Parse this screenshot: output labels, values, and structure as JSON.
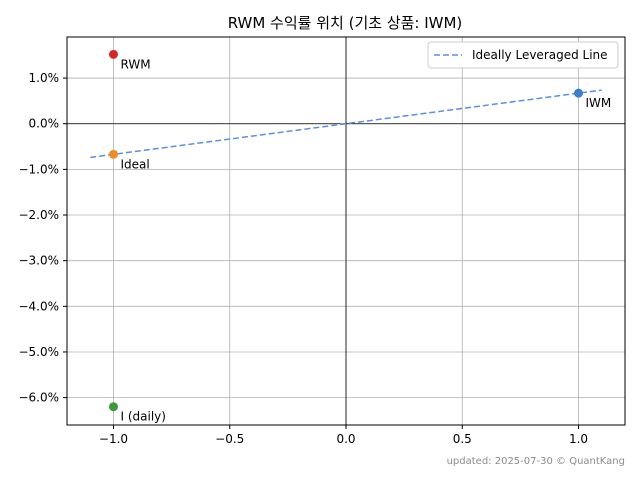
{
  "chart_data": {
    "type": "scatter",
    "title": "RWM 수익률 위치 (기초 상품: IWM)",
    "xlabel": "",
    "ylabel": "",
    "xlim": [
      -1.2,
      1.2
    ],
    "ylim": [
      -6.6,
      1.9
    ],
    "x_ticks": [
      -1.0,
      -0.5,
      0.0,
      0.5,
      1.0
    ],
    "x_tick_labels": [
      "−1.0",
      "−0.5",
      "0.0",
      "0.5",
      "1.0"
    ],
    "y_ticks": [
      1.0,
      0.0,
      -1.0,
      -2.0,
      -3.0,
      -4.0,
      -5.0,
      -6.0
    ],
    "y_tick_labels": [
      "1.0%",
      "0.0%",
      "−1.0%",
      "−2.0%",
      "−3.0%",
      "−4.0%",
      "−5.0%",
      "−6.0%"
    ],
    "grid": true,
    "legend_position": "top-right",
    "points": [
      {
        "label": "RWM",
        "x": -1.0,
        "y": 1.52,
        "color": "#d62728"
      },
      {
        "label": "IWM",
        "x": 1.0,
        "y": 0.67,
        "color": "#3a7fc6"
      },
      {
        "label": "Ideal",
        "x": -1.0,
        "y": -0.67,
        "color": "#f08a24"
      },
      {
        "label": "I (daily)",
        "x": -1.0,
        "y": -6.2,
        "color": "#3a9a3a"
      }
    ],
    "line": {
      "name": "Ideally Leveraged Line",
      "color": "#5b8fe0",
      "x": [
        -1.1,
        1.1
      ],
      "y": [
        -0.737,
        0.737
      ]
    },
    "footer": "updated: 2025-07-30 © QuantKang"
  }
}
